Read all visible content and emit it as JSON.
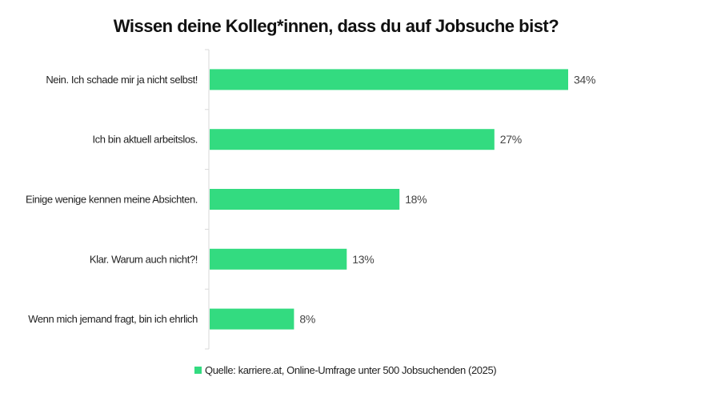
{
  "chart_data": {
    "type": "bar",
    "orientation": "horizontal",
    "title": "Wissen deine Kolleg*innen, dass du auf Jobsuche bist?",
    "categories": [
      "Nein. Ich schade mir ja nicht selbst!",
      "Ich bin aktuell arbeitslos.",
      "Einige wenige kennen meine Absichten.",
      "Klar. Warum auch nicht?!",
      "Wenn mich jemand fragt, bin ich ehrlich"
    ],
    "series": [
      {
        "name": "Quelle: karriere.at, Online-Umfrage unter 500 Jobsuchenden (2025)",
        "values": [
          34,
          27,
          18,
          13,
          8
        ],
        "labels": [
          "34%",
          "27%",
          "18%",
          "13%",
          "8%"
        ],
        "color": "#33db80"
      }
    ],
    "xlim": [
      0,
      40
    ],
    "grid": false,
    "legend": "bottom-center",
    "axis_color": "#d9d9d9"
  }
}
